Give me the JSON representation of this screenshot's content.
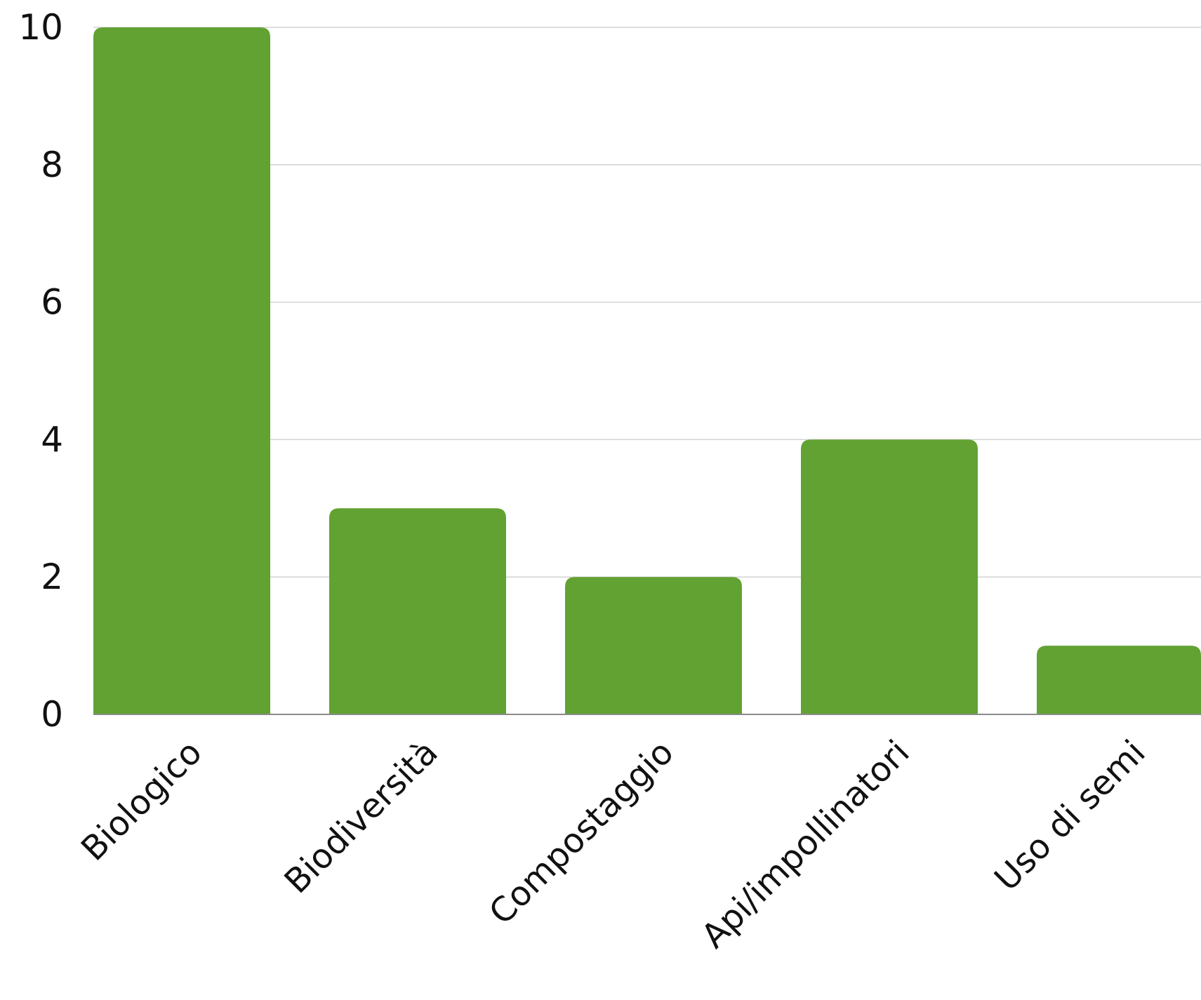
{
  "chart_data": {
    "type": "bar",
    "title": "",
    "xlabel": "",
    "ylabel": "",
    "categories": [
      "Biologico",
      "Biodiversità",
      "Compostaggio",
      "Api/impollinatori",
      "Uso di semi"
    ],
    "values": [
      10,
      3,
      2,
      4,
      1
    ],
    "ylim": [
      0,
      10
    ],
    "yticks": [
      "0",
      "2",
      "4",
      "6",
      "8",
      "10"
    ],
    "grid": true,
    "legend": "none",
    "colors": {
      "bar": "#62a233",
      "grid": "#d3d3d3",
      "axis": "#8a8a8a",
      "text": "#111111"
    }
  }
}
